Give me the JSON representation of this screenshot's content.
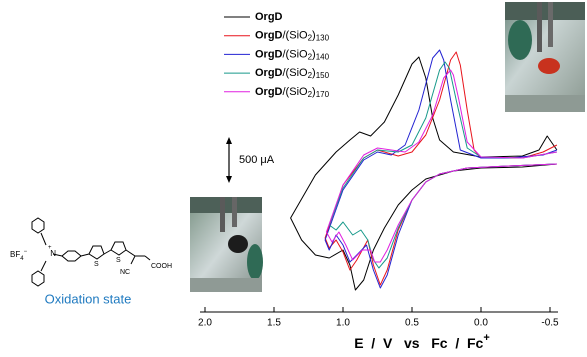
{
  "chart_data": {
    "type": "line",
    "x_label": "E  /  V   vs   Fc  /  Fc",
    "x_label_sup": "+",
    "xlim": [
      2.0,
      -0.5
    ],
    "xticks": [
      {
        "value": 2.0,
        "label": "2.0"
      },
      1.5,
      {
        "value": 1.0,
        "label": "1.0"
      },
      0.5,
      {
        "value": 0.0,
        "label": "0.0"
      },
      -0.5
    ],
    "ylim": [
      -1650,
      1700
    ],
    "scale_bar": {
      "value": 500,
      "label": "500 μA"
    },
    "legend": "top-left",
    "series": [
      {
        "name": "OrgD",
        "color": "#000000",
        "x": [
          -0.55,
          -0.48,
          -0.42,
          -0.3,
          0,
          0.2,
          0.3,
          0.35,
          0.4,
          0.45,
          0.5,
          0.6,
          0.7,
          0.8,
          0.88,
          0.95,
          1.05,
          1.2,
          1.38,
          1.3,
          1.2,
          1.1,
          1.0,
          0.95,
          0.91,
          0.85,
          0.78,
          0.7,
          0.6,
          0.5,
          0.4,
          0.2,
          0,
          -0.3,
          -0.55
        ],
        "values": [
          175,
          350,
          175,
          100,
          88,
          150,
          300,
          575,
          1075,
          1338,
          1250,
          862,
          525,
          350,
          400,
          300,
          150,
          -138,
          -675,
          -950,
          -1138,
          -1175,
          -1075,
          -1262,
          -1575,
          -1450,
          -1075,
          -800,
          -512,
          -325,
          -188,
          -88,
          -50,
          -38,
          0
        ]
      },
      {
        "name": "OrgD/(SiO2)130",
        "color": "#e8141c",
        "x": [
          -0.55,
          -0.45,
          -0.3,
          0,
          0.05,
          0.1,
          0.15,
          0.18,
          0.22,
          0.3,
          0.4,
          0.5,
          0.6,
          0.75,
          0.85,
          1.0,
          1.13,
          1.1,
          1.05,
          1.0,
          0.95,
          0.9,
          0.82,
          0.78,
          0.73,
          0.68,
          0.6,
          0.5,
          0.4,
          0.3,
          0.1,
          -0.2,
          -0.55
        ],
        "values": [
          238,
          150,
          75,
          75,
          175,
          675,
          1238,
          1400,
          1300,
          800,
          362,
          150,
          100,
          175,
          75,
          -262,
          -925,
          -1050,
          -950,
          -1100,
          -1325,
          -1200,
          -950,
          -1262,
          -1512,
          -1325,
          -825,
          -450,
          -225,
          -125,
          -50,
          -25,
          0
        ]
      },
      {
        "name": "OrgD/(SiO2)140",
        "color": "#2323d2",
        "x": [
          -0.55,
          -0.45,
          -0.2,
          0,
          0.15,
          0.22,
          0.27,
          0.3,
          0.35,
          0.45,
          0.55,
          0.65,
          0.75,
          0.85,
          1.0,
          1.13,
          1.1,
          1.05,
          1.0,
          0.95,
          0.9,
          0.83,
          0.78,
          0.73,
          0.68,
          0.6,
          0.5,
          0.4,
          0.3,
          0.1,
          -0.2,
          -0.55
        ],
        "values": [
          175,
          112,
          75,
          75,
          175,
          800,
          1300,
          1425,
          1325,
          675,
          238,
          112,
          150,
          50,
          -325,
          -950,
          -1075,
          -888,
          -1012,
          -1225,
          -1138,
          -1012,
          -1325,
          -1550,
          -1388,
          -888,
          -450,
          -225,
          -125,
          -50,
          -25,
          0
        ]
      },
      {
        "name": "OrgD/(SiO2)150",
        "color": "#17998a",
        "x": [
          -0.55,
          -0.3,
          0,
          0.1,
          0.18,
          0.23,
          0.26,
          0.3,
          0.4,
          0.5,
          0.6,
          0.75,
          0.85,
          1.0,
          1.1,
          1.05,
          1.0,
          0.93,
          0.87,
          0.82,
          0.78,
          0.74,
          0.68,
          0.6,
          0.5,
          0.4,
          0.3,
          0.1,
          -0.2,
          -0.55
        ],
        "values": [
          150,
          75,
          88,
          200,
          800,
          1200,
          1275,
          1175,
          575,
          238,
          150,
          175,
          75,
          -300,
          -762,
          -825,
          -725,
          -888,
          -825,
          -950,
          -1200,
          -1300,
          -1175,
          -800,
          -450,
          -225,
          -125,
          -50,
          -25,
          0
        ]
      },
      {
        "name": "OrgD/(SiO2)170",
        "color": "#e020e0",
        "x": [
          -0.55,
          -0.3,
          0,
          0.1,
          0.16,
          0.2,
          0.22,
          0.27,
          0.35,
          0.45,
          0.55,
          0.75,
          0.85,
          1.0,
          1.12,
          1.08,
          1.03,
          0.98,
          0.93,
          0.86,
          0.8,
          0.77,
          0.73,
          0.68,
          0.6,
          0.5,
          0.4,
          0.3,
          0.1,
          -0.2,
          -0.55
        ],
        "values": [
          150,
          75,
          88,
          275,
          800,
          1112,
          1175,
          1075,
          612,
          275,
          150,
          200,
          112,
          -262,
          -850,
          -975,
          -850,
          -1012,
          -1200,
          -1075,
          -1075,
          -1225,
          -1225,
          -1075,
          -762,
          -450,
          -225,
          -125,
          -50,
          -25,
          0
        ]
      }
    ]
  },
  "molecule": {
    "counterion": "BF",
    "counterion_sub": "4",
    "counterion_charge": "−",
    "nitrogen": "N",
    "nitrogen_charge": "+",
    "sulfur": [
      "S",
      "S"
    ],
    "nitrile": "NC",
    "acid": "COOH",
    "caption": "Oxidation state"
  }
}
